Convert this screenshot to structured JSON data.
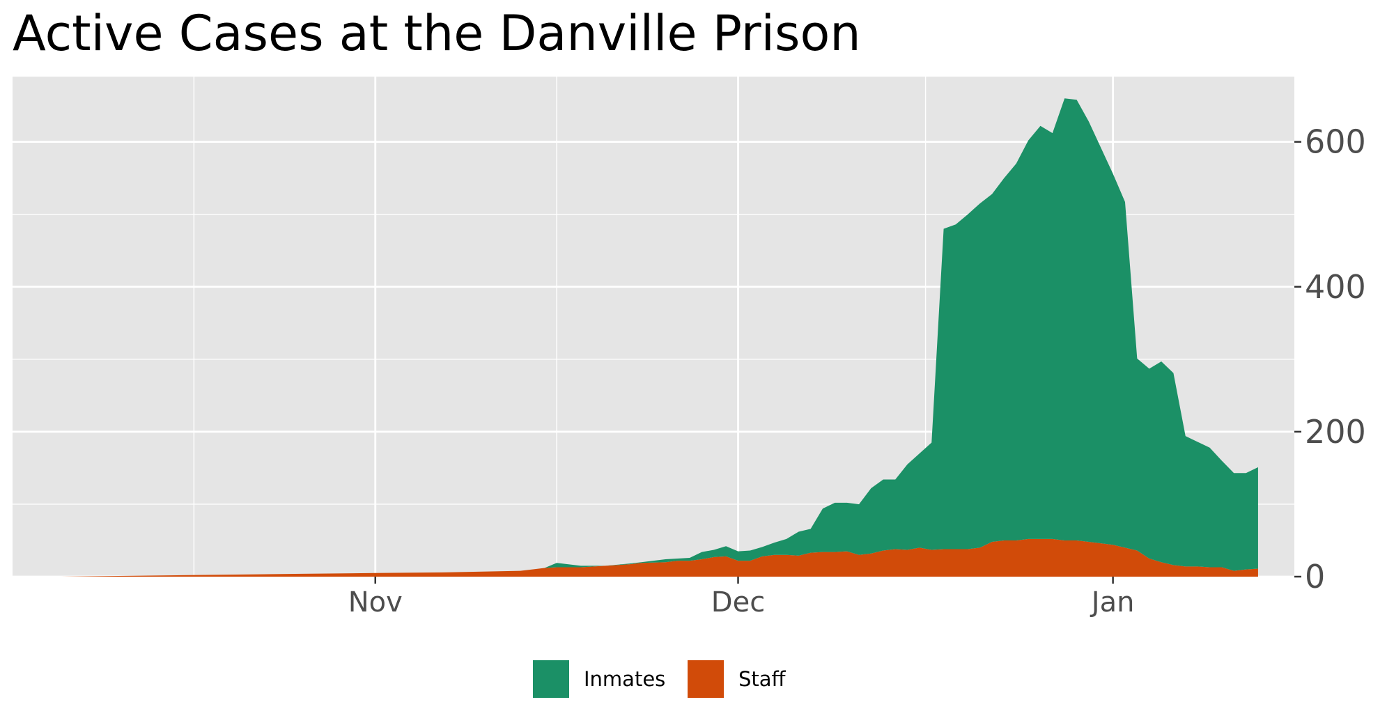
{
  "chart_data": {
    "type": "area",
    "stacked": true,
    "title": "Active Cases at the Danville Prison",
    "xlabel": "",
    "ylabel": "",
    "x_tick_labels": [
      {
        "date": "2020-11-01",
        "label": "Nov"
      },
      {
        "date": "2020-12-01",
        "label": "Dec"
      },
      {
        "date": "2021-01-01",
        "label": "Jan"
      }
    ],
    "x_range": [
      "2020-10-02",
      "2021-01-16"
    ],
    "ylim": [
      0,
      690
    ],
    "y_ticks": [
      0,
      200,
      400,
      600
    ],
    "y_tick_labels": [
      "0",
      "200",
      "400",
      "600"
    ],
    "y_axis_position": "right",
    "grid": true,
    "legend_position": "bottom",
    "panel_background": "#e5e5e5",
    "grid_color": "#ffffff",
    "series": [
      {
        "name": "Staff",
        "color": "#d14b09",
        "points": [
          [
            "2020-10-06",
            0
          ],
          [
            "2020-10-16",
            2
          ],
          [
            "2020-10-26",
            4
          ],
          [
            "2020-11-01",
            5
          ],
          [
            "2020-11-07",
            6
          ],
          [
            "2020-11-13",
            8
          ],
          [
            "2020-11-15",
            12
          ],
          [
            "2020-11-16",
            13
          ],
          [
            "2020-11-18",
            13
          ],
          [
            "2020-11-20",
            15
          ],
          [
            "2020-11-22",
            17
          ],
          [
            "2020-11-23",
            19
          ],
          [
            "2020-11-25",
            20
          ],
          [
            "2020-11-26",
            22
          ],
          [
            "2020-11-27",
            22
          ],
          [
            "2020-11-28",
            24
          ],
          [
            "2020-11-29",
            27
          ],
          [
            "2020-11-30",
            28
          ],
          [
            "2020-12-01",
            22
          ],
          [
            "2020-12-02",
            22
          ],
          [
            "2020-12-03",
            28
          ],
          [
            "2020-12-04",
            30
          ],
          [
            "2020-12-05",
            30
          ],
          [
            "2020-12-06",
            29
          ],
          [
            "2020-12-07",
            33
          ],
          [
            "2020-12-08",
            34
          ],
          [
            "2020-12-09",
            34
          ],
          [
            "2020-12-10",
            35
          ],
          [
            "2020-12-11",
            30
          ],
          [
            "2020-12-12",
            32
          ],
          [
            "2020-12-13",
            36
          ],
          [
            "2020-12-14",
            38
          ],
          [
            "2020-12-15",
            37
          ],
          [
            "2020-12-16",
            40
          ],
          [
            "2020-12-17",
            37
          ],
          [
            "2020-12-18",
            38
          ],
          [
            "2020-12-19",
            38
          ],
          [
            "2020-12-20",
            38
          ],
          [
            "2020-12-21",
            40
          ],
          [
            "2020-12-22",
            48
          ],
          [
            "2020-12-23",
            50
          ],
          [
            "2020-12-24",
            50
          ],
          [
            "2020-12-25",
            52
          ],
          [
            "2020-12-26",
            52
          ],
          [
            "2020-12-27",
            52
          ],
          [
            "2020-12-28",
            50
          ],
          [
            "2020-12-29",
            50
          ],
          [
            "2020-12-30",
            48
          ],
          [
            "2020-12-31",
            46
          ],
          [
            "2021-01-01",
            44
          ],
          [
            "2021-01-02",
            40
          ],
          [
            "2021-01-03",
            36
          ],
          [
            "2021-01-04",
            25
          ],
          [
            "2021-01-05",
            20
          ],
          [
            "2021-01-06",
            16
          ],
          [
            "2021-01-07",
            14
          ],
          [
            "2021-01-08",
            14
          ],
          [
            "2021-01-09",
            13
          ],
          [
            "2021-01-10",
            13
          ],
          [
            "2021-01-11",
            8
          ],
          [
            "2021-01-12",
            10
          ],
          [
            "2021-01-13",
            11
          ]
        ]
      },
      {
        "name": "Inmates",
        "color": "#1b9066",
        "points": [
          [
            "2020-10-06",
            0
          ],
          [
            "2020-10-16",
            0
          ],
          [
            "2020-10-26",
            0
          ],
          [
            "2020-11-01",
            0
          ],
          [
            "2020-11-07",
            0
          ],
          [
            "2020-11-13",
            0
          ],
          [
            "2020-11-15",
            0
          ],
          [
            "2020-11-16",
            6
          ],
          [
            "2020-11-18",
            2
          ],
          [
            "2020-11-20",
            0
          ],
          [
            "2020-11-22",
            1
          ],
          [
            "2020-11-23",
            1
          ],
          [
            "2020-11-25",
            4
          ],
          [
            "2020-11-26",
            3
          ],
          [
            "2020-11-27",
            4
          ],
          [
            "2020-11-28",
            10
          ],
          [
            "2020-11-29",
            10
          ],
          [
            "2020-11-30",
            14
          ],
          [
            "2020-12-01",
            13
          ],
          [
            "2020-12-02",
            14
          ],
          [
            "2020-12-03",
            13
          ],
          [
            "2020-12-04",
            17
          ],
          [
            "2020-12-05",
            22
          ],
          [
            "2020-12-06",
            33
          ],
          [
            "2020-12-07",
            33
          ],
          [
            "2020-12-08",
            60
          ],
          [
            "2020-12-09",
            68
          ],
          [
            "2020-12-10",
            67
          ],
          [
            "2020-12-11",
            70
          ],
          [
            "2020-12-12",
            90
          ],
          [
            "2020-12-13",
            98
          ],
          [
            "2020-12-14",
            96
          ],
          [
            "2020-12-15",
            118
          ],
          [
            "2020-12-16",
            130
          ],
          [
            "2020-12-17",
            148
          ],
          [
            "2020-12-18",
            442
          ],
          [
            "2020-12-19",
            448
          ],
          [
            "2020-12-20",
            462
          ],
          [
            "2020-12-21",
            475
          ],
          [
            "2020-12-22",
            480
          ],
          [
            "2020-12-23",
            500
          ],
          [
            "2020-12-24",
            520
          ],
          [
            "2020-12-25",
            550
          ],
          [
            "2020-12-26",
            570
          ],
          [
            "2020-12-27",
            560
          ],
          [
            "2020-12-28",
            610
          ],
          [
            "2020-12-29",
            608
          ],
          [
            "2020-12-30",
            580
          ],
          [
            "2020-12-31",
            546
          ],
          [
            "2021-01-01",
            512
          ],
          [
            "2021-01-02",
            477
          ],
          [
            "2021-01-03",
            265
          ],
          [
            "2021-01-04",
            262
          ],
          [
            "2021-01-05",
            277
          ],
          [
            "2021-01-06",
            265
          ],
          [
            "2021-01-07",
            180
          ],
          [
            "2021-01-08",
            172
          ],
          [
            "2021-01-09",
            165
          ],
          [
            "2021-01-10",
            147
          ],
          [
            "2021-01-11",
            135
          ],
          [
            "2021-01-12",
            133
          ],
          [
            "2021-01-13",
            140
          ]
        ]
      }
    ],
    "legend": [
      {
        "name": "Inmates",
        "color": "#1b9066"
      },
      {
        "name": "Staff",
        "color": "#d14b09"
      }
    ]
  }
}
